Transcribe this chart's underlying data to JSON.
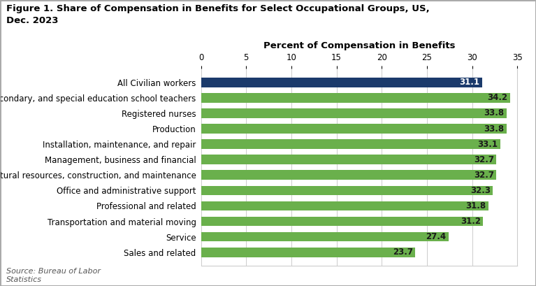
{
  "title": "Figure 1. Share of Compensation in Benefits for Select Occupational Groups, US,\nDec. 2023",
  "xlabel": "Percent of Compensation in Benefits",
  "source": "Source: Bureau of Labor\nStatistics",
  "categories": [
    "Sales and related",
    "Service",
    "Transportation and material moving",
    "Professional and related",
    "Office and administrative support",
    "Natural resources, construction, and maintenance",
    "Management, business and financial",
    "Installation, maintenance, and repair",
    "Production",
    "Registered nurses",
    "Primary, secondary, and special education school teachers",
    "All Civilian workers"
  ],
  "values": [
    23.7,
    27.4,
    31.2,
    31.8,
    32.3,
    32.7,
    32.7,
    33.1,
    33.8,
    33.8,
    34.2,
    31.1
  ],
  "colors": [
    "#6ab04c",
    "#6ab04c",
    "#6ab04c",
    "#6ab04c",
    "#6ab04c",
    "#6ab04c",
    "#6ab04c",
    "#6ab04c",
    "#6ab04c",
    "#6ab04c",
    "#6ab04c",
    "#1b3a6b"
  ],
  "xlim": [
    0,
    35
  ],
  "xticks": [
    0,
    5,
    10,
    15,
    20,
    25,
    30,
    35
  ],
  "bar_height": 0.62,
  "label_fontsize": 8.5,
  "title_fontsize": 9.5,
  "axis_label_fontsize": 9.5,
  "tick_fontsize": 8.5,
  "background_color": "#ffffff",
  "grid_color": "#cccccc",
  "figure_border_color": "#aaaaaa"
}
